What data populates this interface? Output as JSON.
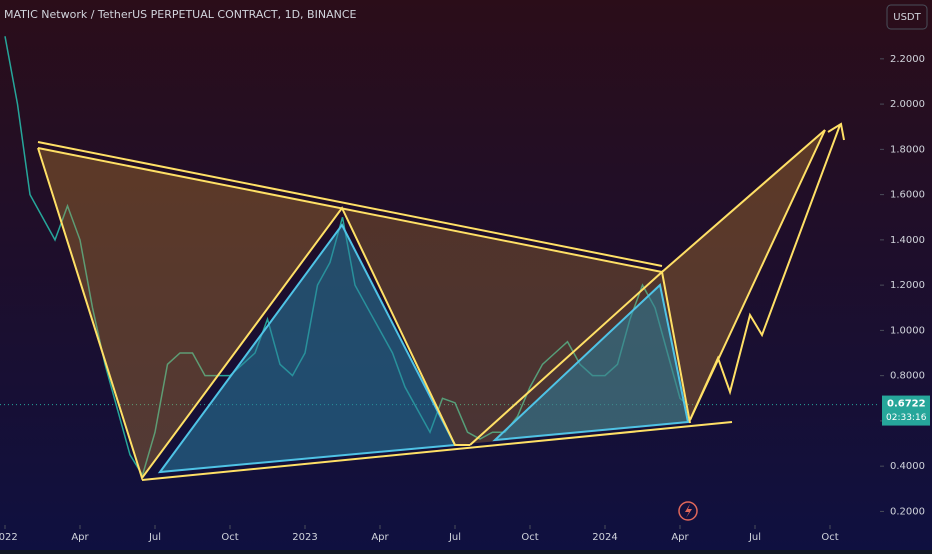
{
  "chart_data": {
    "type": "line",
    "title": "MATIC Network / TetherUS PERPETUAL CONTRACT, 1D, BINANCE",
    "currency": "USDT",
    "series": [
      {
        "name": "MATICUSDT",
        "color": "#26a69a",
        "x": [
          0,
          0.5,
          1,
          1.5,
          2,
          2.5,
          3,
          3.5,
          4,
          4.5,
          5,
          5.5,
          6,
          6.5,
          7,
          7.5,
          8,
          8.5,
          9,
          9.5,
          10,
          10.5,
          11,
          11.5,
          12,
          12.5,
          13,
          13.5,
          14,
          14.5,
          15,
          15.5,
          16,
          16.5,
          17,
          17.5,
          18,
          18.5,
          19,
          19.5,
          20,
          20.5,
          21,
          21.5,
          22,
          22.5,
          23,
          23.5,
          24,
          24.5,
          25,
          25.5,
          26,
          26.5,
          27,
          27.3
        ],
        "values": [
          2.3,
          2.0,
          1.6,
          1.5,
          1.4,
          1.55,
          1.4,
          1.1,
          0.85,
          0.65,
          0.45,
          0.36,
          0.55,
          0.85,
          0.9,
          0.9,
          0.8,
          0.8,
          0.8,
          0.85,
          0.9,
          1.05,
          0.85,
          0.8,
          0.9,
          1.2,
          1.3,
          1.5,
          1.2,
          1.1,
          1.0,
          0.9,
          0.75,
          0.65,
          0.55,
          0.7,
          0.68,
          0.55,
          0.52,
          0.55,
          0.55,
          0.62,
          0.75,
          0.85,
          0.9,
          0.95,
          0.85,
          0.8,
          0.8,
          0.85,
          1.05,
          1.2,
          1.1,
          0.9,
          0.7,
          0.6722
        ]
      }
    ],
    "last_price": 0.6722,
    "price_color": "#26a69a",
    "countdown": "02:33:16",
    "xlim": [
      -0.2,
      35
    ],
    "ylim": [
      0.14,
      2.46
    ],
    "xticks": [
      {
        "value": 0,
        "label": "2022"
      },
      {
        "value": 3,
        "label": "Apr"
      },
      {
        "value": 6,
        "label": "Jul"
      },
      {
        "value": 9,
        "label": "Oct"
      },
      {
        "value": 12,
        "label": "2023"
      },
      {
        "value": 15,
        "label": "Apr"
      },
      {
        "value": 18,
        "label": "Jul"
      },
      {
        "value": 21,
        "label": "Oct"
      },
      {
        "value": 24,
        "label": "2024"
      },
      {
        "value": 27,
        "label": "Apr"
      },
      {
        "value": 30,
        "label": "Jul"
      },
      {
        "value": 33,
        "label": "Oct"
      }
    ],
    "yticks": [
      {
        "value": 0.2,
        "label": "0.2000"
      },
      {
        "value": 0.4,
        "label": "0.4000"
      },
      {
        "value": 0.6,
        "label": "0.6000"
      },
      {
        "value": 0.8,
        "label": "0.8000"
      },
      {
        "value": 1.0,
        "label": "1.0000"
      },
      {
        "value": 1.2,
        "label": "1.2000"
      },
      {
        "value": 1.4,
        "label": "1.4000"
      },
      {
        "value": 1.6,
        "label": "1.6000"
      },
      {
        "value": 1.8,
        "label": "1.8000"
      },
      {
        "value": 2.0,
        "label": "2.0000"
      },
      {
        "value": 2.2,
        "label": "2.2000"
      }
    ]
  }
}
